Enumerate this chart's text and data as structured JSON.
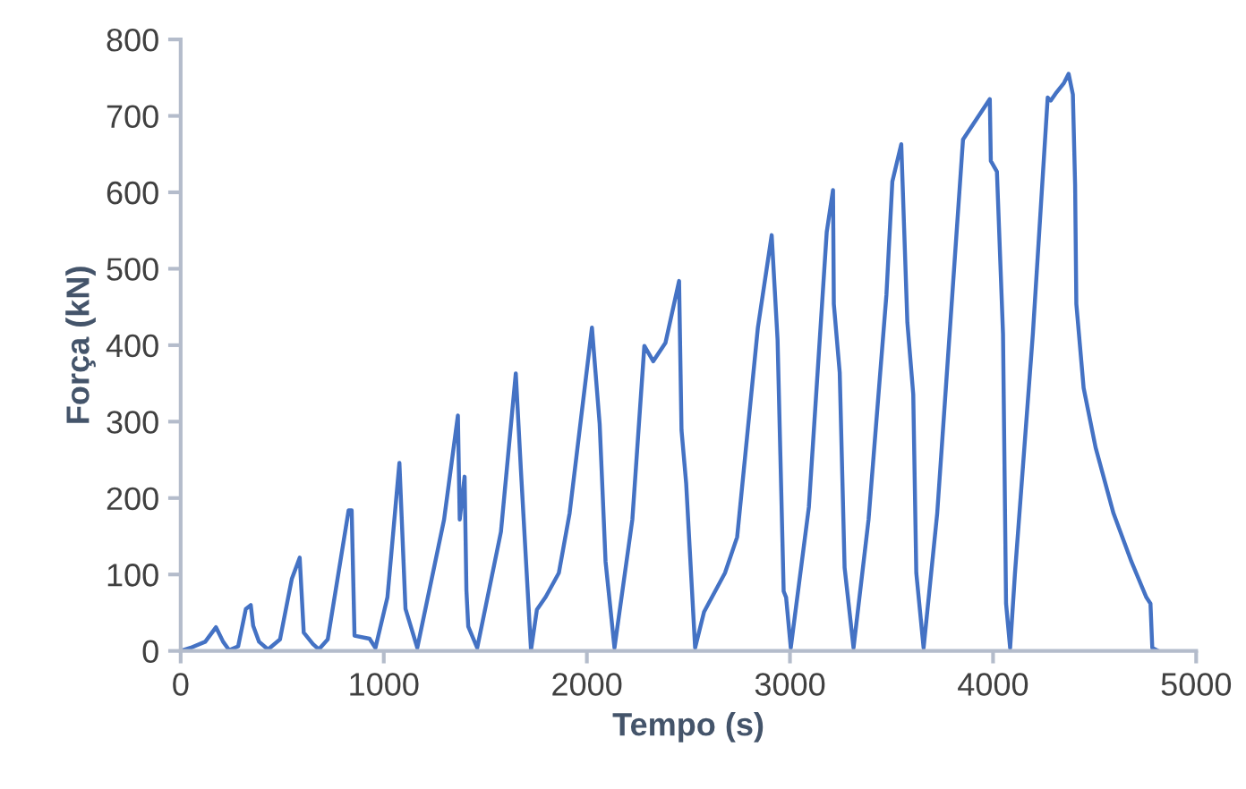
{
  "chart_data": {
    "type": "line",
    "xlabel": "Tempo (s)",
    "ylabel": "Força (kN)",
    "xlim": [
      0,
      5000
    ],
    "xticks": [
      0,
      1000,
      2000,
      3000,
      4000,
      5000
    ],
    "ylim": [
      0,
      800
    ],
    "yticks": [
      0,
      100,
      200,
      300,
      400,
      500,
      600,
      700,
      800
    ],
    "grid": false,
    "legend": false,
    "marker": "none",
    "line_style": "solid",
    "series": [
      {
        "color": "#4472c4",
        "x": [
          0,
          48,
          121,
          174,
          209,
          239,
          283,
          321,
          345,
          357,
          386,
          430,
          489,
          547,
          586,
          606,
          651,
          680,
          724,
          827,
          842,
          856,
          930,
          959,
          1018,
          1077,
          1107,
          1165,
          1297,
          1365,
          1374,
          1398,
          1407,
          1416,
          1460,
          1577,
          1650,
          1675,
          1725,
          1754,
          1798,
          1862,
          1915,
          2025,
          2063,
          2092,
          2136,
          2224,
          2283,
          2327,
          2387,
          2454,
          2466,
          2489,
          2533,
          2577,
          2680,
          2740,
          2842,
          2910,
          2939,
          2969,
          2981,
          3004,
          3093,
          3181,
          3212,
          3216,
          3245,
          3269,
          3313,
          3387,
          3475,
          3504,
          3548,
          3578,
          3607,
          3622,
          3658,
          3725,
          3852,
          3984,
          3989,
          4019,
          4049,
          4064,
          4084,
          4108,
          4196,
          4269,
          4284,
          4313,
          4349,
          4372,
          4393,
          4404,
          4410,
          4446,
          4505,
          4593,
          4681,
          4755,
          4775,
          4784,
          4814
        ],
        "values": [
          0,
          4,
          12,
          31,
          12,
          1,
          6,
          55,
          60,
          33,
          12,
          2,
          15,
          94,
          122,
          24,
          9,
          2,
          15,
          184,
          184,
          20,
          16,
          4,
          70,
          246,
          55,
          4,
          172,
          308,
          172,
          228,
          79,
          32,
          4,
          156,
          363,
          238,
          1,
          54,
          71,
          102,
          180,
          423,
          297,
          117,
          4,
          172,
          399,
          379,
          403,
          484,
          289,
          219,
          4,
          51,
          102,
          149,
          423,
          544,
          407,
          78,
          70,
          4,
          188,
          548,
          603,
          454,
          364,
          109,
          4,
          172,
          466,
          614,
          663,
          430,
          336,
          102,
          4,
          180,
          669,
          722,
          641,
          627,
          415,
          62,
          4,
          102,
          415,
          724,
          720,
          731,
          743,
          755,
          728,
          610,
          454,
          344,
          266,
          180,
          117,
          70,
          62,
          4,
          0
        ]
      }
    ]
  }
}
